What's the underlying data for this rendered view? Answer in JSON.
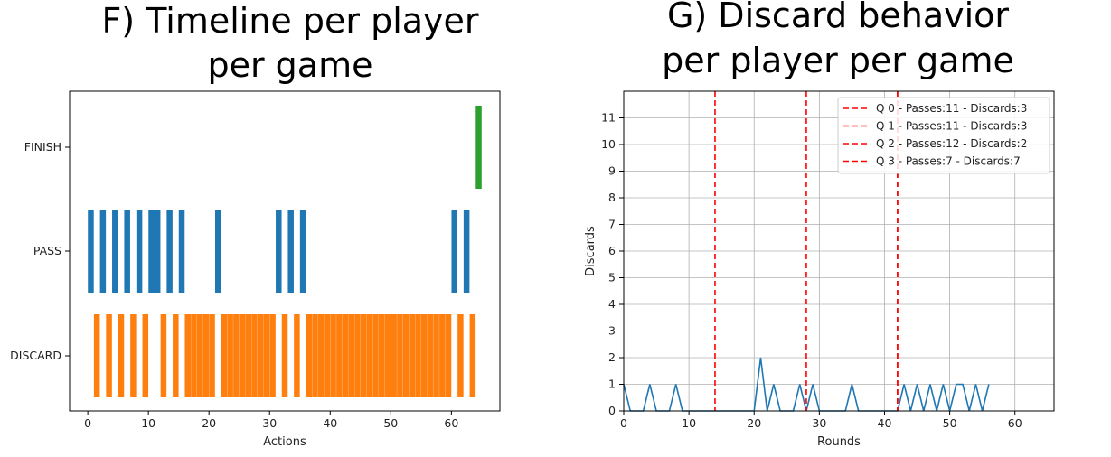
{
  "chart_data": [
    {
      "type": "timeline",
      "title_lines": [
        "F) Timeline per player",
        "per game"
      ],
      "xlabel": "Actions",
      "ylabel": "",
      "xlim": [
        -3,
        68
      ],
      "x_ticks": [
        0,
        10,
        20,
        30,
        40,
        50,
        60
      ],
      "categories": [
        "DISCARD",
        "PASS",
        "FINISH"
      ],
      "colors": {
        "DISCARD": "#ff7f0e",
        "PASS": "#1f77b4",
        "FINISH": "#2ca02c"
      },
      "events": {
        "PASS": [
          0.5,
          2.5,
          4.5,
          6.5,
          8.5,
          10.5,
          11.0,
          11.5,
          13.5,
          15.5,
          21.5,
          31.5,
          33.5,
          35.5,
          60.5,
          62.5
        ],
        "DISCARD": [
          1.5,
          3.5,
          5.5,
          7.5,
          9.5,
          12.5,
          14.5,
          16.5,
          17.5,
          18.5,
          19.5,
          20.5,
          22.5,
          23.5,
          24.5,
          25.5,
          26.5,
          27.5,
          28.5,
          29.5,
          30.5,
          32.5,
          34.5,
          36.5,
          37.5,
          38.5,
          39.5,
          40.5,
          41.5,
          42.5,
          43.5,
          44.5,
          45.5,
          46.5,
          47.5,
          48.5,
          49.5,
          50.5,
          51.5,
          52.5,
          53.5,
          54.5,
          55.5,
          56.5,
          57.5,
          58.5,
          59.5,
          61.5,
          63.5
        ],
        "FINISH": [
          64.5
        ]
      }
    },
    {
      "type": "line",
      "title_lines": [
        "G) Discard behavior",
        "per player per game"
      ],
      "xlabel": "Rounds",
      "ylabel": "Discards",
      "xlim": [
        0,
        66
      ],
      "ylim": [
        0,
        12
      ],
      "x_ticks": [
        0,
        10,
        20,
        30,
        40,
        50,
        60
      ],
      "y_ticks": [
        0,
        1,
        2,
        3,
        4,
        5,
        6,
        7,
        8,
        9,
        10,
        11
      ],
      "grid": true,
      "legend_position": "top-right",
      "x": [
        0,
        1,
        2,
        3,
        4,
        5,
        6,
        7,
        8,
        9,
        10,
        11,
        12,
        13,
        14,
        15,
        16,
        17,
        18,
        19,
        20,
        21,
        22,
        23,
        24,
        25,
        26,
        27,
        28,
        29,
        30,
        31,
        32,
        33,
        34,
        35,
        36,
        37,
        38,
        39,
        40,
        41,
        42,
        43,
        44,
        45,
        46,
        47,
        48,
        49,
        50,
        51,
        52,
        53,
        54,
        55,
        56
      ],
      "values": [
        1,
        0,
        0,
        0,
        1,
        0,
        0,
        0,
        1,
        0,
        0,
        0,
        0,
        0,
        0,
        0,
        0,
        0,
        0,
        0,
        0,
        2,
        0,
        1,
        0,
        0,
        0,
        1,
        0,
        1,
        0,
        0,
        0,
        0,
        0,
        1,
        0,
        0,
        0,
        0,
        0,
        0,
        0,
        1,
        0,
        1,
        0,
        1,
        0,
        1,
        0,
        1,
        1,
        0,
        1,
        0,
        1
      ],
      "line_color": "#1f77b4",
      "quartile_lines": [
        {
          "x": 14,
          "label": "Q 0 - Passes:11 - Discards:3"
        },
        {
          "x": 28,
          "label": "Q 1 - Passes:11 - Discards:3"
        },
        {
          "x": 42,
          "label": "Q 2 - Passes:12 - Discards:2"
        },
        {
          "x": 42,
          "label": "Q 3 - Passes:7 - Discards:7"
        }
      ],
      "quartile_color": "#ff0000"
    }
  ]
}
